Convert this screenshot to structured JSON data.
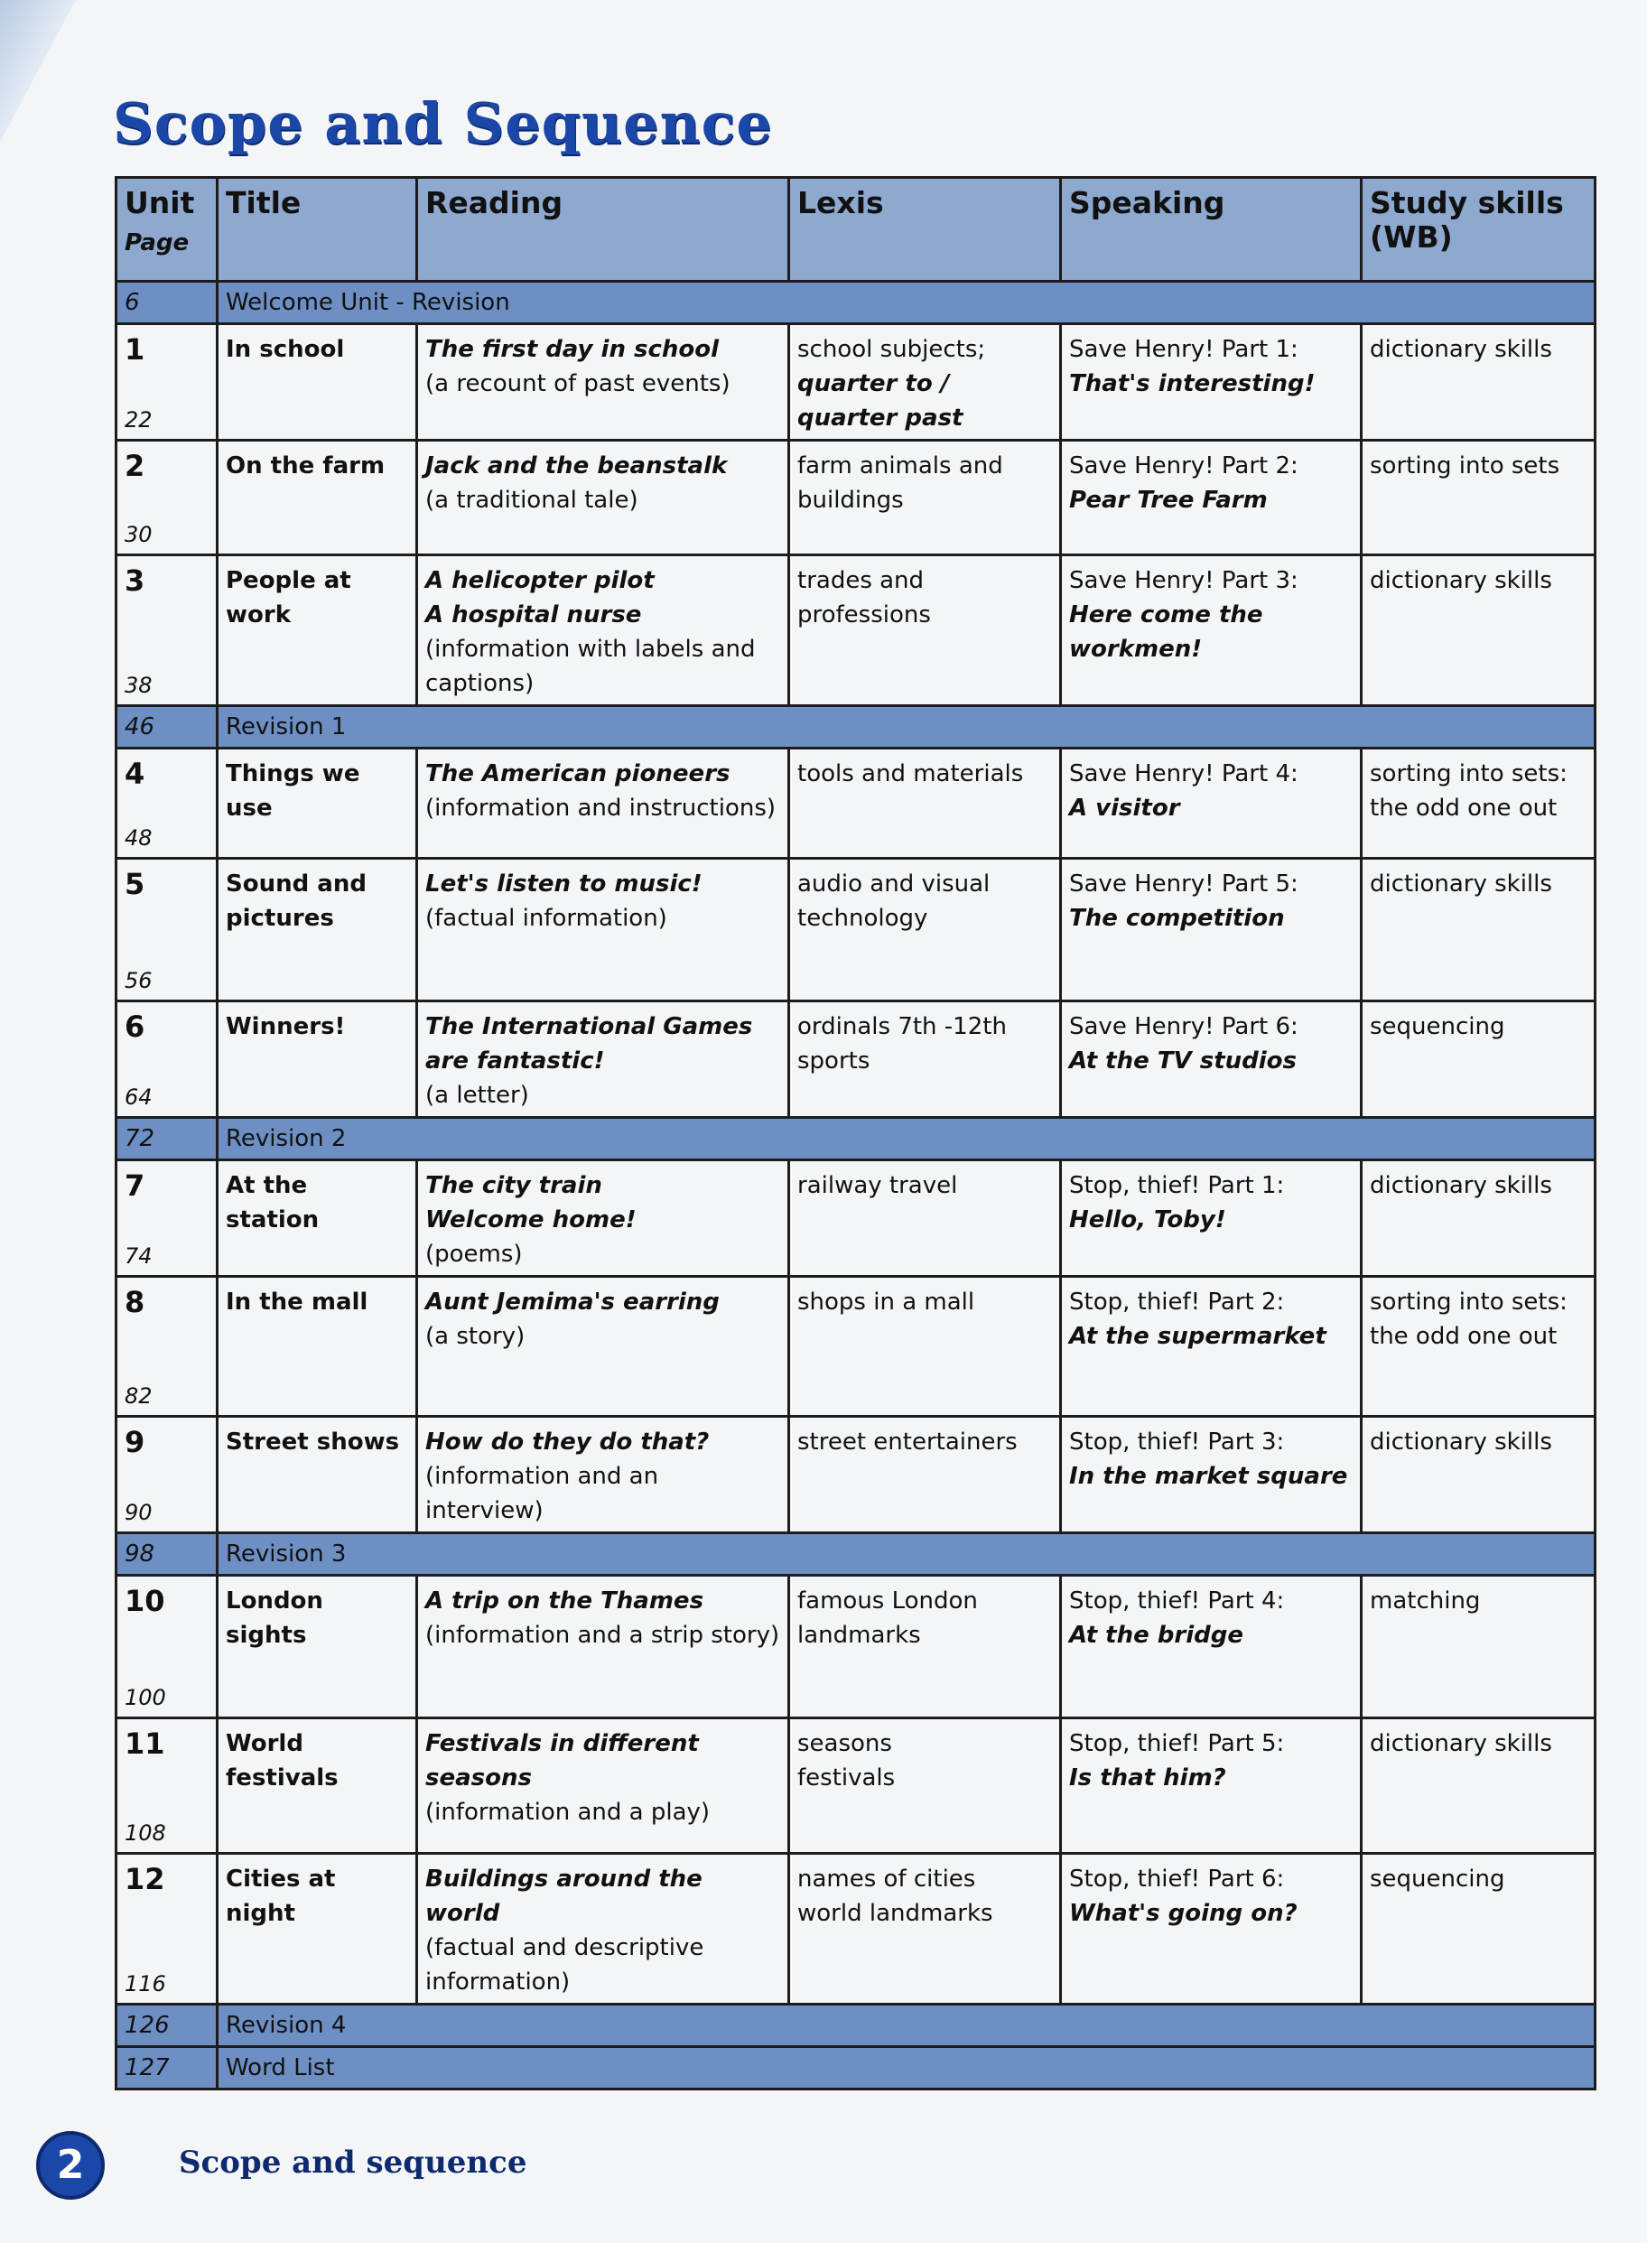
{
  "title": "Scope and Sequence",
  "headers": {
    "unit": "Unit",
    "page": "Page",
    "title": "Title",
    "reading": "Reading",
    "lexis": "Lexis",
    "speaking": "Speaking",
    "study": "Study skills (WB)"
  },
  "rows": [
    {
      "band": true,
      "page": "6",
      "label": "Welcome Unit - Revision"
    },
    {
      "unit": "1",
      "page": "22",
      "title": [
        "In school"
      ],
      "reading": [
        {
          "t": "The first day in school",
          "i": true
        },
        {
          "t": "(a recount of past events)",
          "i": false
        }
      ],
      "lexis": [
        {
          "t": "school subjects;",
          "i": false
        },
        {
          "t": "quarter to / quarter past",
          "i": true
        }
      ],
      "speaking": [
        "Save Henry! Part 1:",
        "That's interesting!"
      ],
      "study": "dictionary skills",
      "h": 124
    },
    {
      "unit": "2",
      "page": "30",
      "title": [
        "On the farm"
      ],
      "reading": [
        {
          "t": "Jack and the beanstalk",
          "i": true
        },
        {
          "t": "(a traditional tale)",
          "i": false
        }
      ],
      "lexis": [
        {
          "t": "farm animals and buildings",
          "i": false
        }
      ],
      "speaking": [
        "Save Henry! Part 2:",
        "Pear Tree Farm"
      ],
      "study": "sorting into sets",
      "h": 127
    },
    {
      "unit": "3",
      "page": "38",
      "title": [
        "People at work"
      ],
      "reading": [
        {
          "t": "A helicopter pilot",
          "i": true
        },
        {
          "t": "A hospital nurse",
          "i": true
        },
        {
          "t": "(information with labels and captions)",
          "i": false
        }
      ],
      "lexis": [
        {
          "t": "trades and professions",
          "i": false
        }
      ],
      "speaking": [
        "Save Henry! Part 3:",
        "Here come the workmen!"
      ],
      "study": "dictionary skills",
      "h": 124
    },
    {
      "band": true,
      "page": "46",
      "label": "Revision 1"
    },
    {
      "unit": "4",
      "page": "48",
      "title": [
        "Things we use"
      ],
      "reading": [
        {
          "t": "The American pioneers",
          "i": true
        },
        {
          "t": "(information and instructions)",
          "i": false
        }
      ],
      "lexis": [
        {
          "t": "tools and materials",
          "i": false
        }
      ],
      "speaking": [
        "Save Henry! Part 4:",
        "A visitor"
      ],
      "study": "sorting into sets: the odd one out",
      "h": 122
    },
    {
      "unit": "5",
      "page": "56",
      "title": [
        "Sound and pictures"
      ],
      "reading": [
        {
          "t": "Let's listen to music!",
          "i": true
        },
        {
          "t": "(factual information)",
          "i": false
        }
      ],
      "lexis": [
        {
          "t": "audio and visual technology",
          "i": false
        }
      ],
      "speaking": [
        "Save Henry! Part 5:",
        "The competition"
      ],
      "study": "dictionary skills",
      "h": 158
    },
    {
      "unit": "6",
      "page": "64",
      "title": [
        "Winners!"
      ],
      "reading": [
        {
          "t": "The International Games are fantastic!",
          "i": true
        },
        {
          "t": "(a letter)",
          "i": false
        }
      ],
      "lexis": [
        {
          "t": "ordinals 7th -12th",
          "i": false
        },
        {
          "t": "sports",
          "i": false
        }
      ],
      "speaking": [
        "Save Henry! Part 6:",
        "At the TV studios"
      ],
      "study": "sequencing",
      "h": 119
    },
    {
      "band": true,
      "page": "72",
      "label": "Revision 2"
    },
    {
      "unit": "7",
      "page": "74",
      "title": [
        "At the station"
      ],
      "reading": [
        {
          "t": "The city train",
          "i": true
        },
        {
          "t": "Welcome home!",
          "i": true
        },
        {
          "t": "(poems)",
          "i": false
        }
      ],
      "lexis": [
        {
          "t": "railway travel",
          "i": false
        }
      ],
      "speaking": [
        "Stop, thief! Part 1:",
        "Hello, Toby!"
      ],
      "study": "dictionary skills",
      "h": 119
    },
    {
      "unit": "8",
      "page": "82",
      "title": [
        "In the mall"
      ],
      "reading": [
        {
          "t": "Aunt Jemima's earring",
          "i": true
        },
        {
          "t": "(a story)",
          "i": false
        }
      ],
      "lexis": [
        {
          "t": "shops in a mall",
          "i": false
        }
      ],
      "speaking": [
        "Stop, thief! Part 2:",
        "At the supermarket"
      ],
      "study": "sorting into sets: the odd one out",
      "h": 155
    },
    {
      "unit": "9",
      "page": "90",
      "title": [
        "Street shows"
      ],
      "reading": [
        {
          "t": "How do they do that?",
          "i": true
        },
        {
          "t": "(information and an interview)",
          "i": false
        }
      ],
      "lexis": [
        {
          "t": "street entertainers",
          "i": false
        }
      ],
      "speaking": [
        "Stop, thief! Part 3:",
        "In the market square"
      ],
      "study": "dictionary skills",
      "h": 117
    },
    {
      "band": true,
      "page": "98",
      "label": "Revision 3"
    },
    {
      "unit": "10",
      "page": "100",
      "title": [
        "London sights"
      ],
      "reading": [
        {
          "t": "A trip on the Thames",
          "i": true
        },
        {
          "t": "(information and a strip story)",
          "i": false
        }
      ],
      "lexis": [
        {
          "t": "famous London landmarks",
          "i": false
        }
      ],
      "speaking": [
        "Stop, thief! Part 4:",
        "At the bridge"
      ],
      "study": "matching",
      "h": 158
    },
    {
      "unit": "11",
      "page": "108",
      "title": [
        "World festivals"
      ],
      "reading": [
        {
          "t": "Festivals in different seasons",
          "i": true
        },
        {
          "t": "(information and a play)",
          "i": false
        }
      ],
      "lexis": [
        {
          "t": "seasons",
          "i": false
        },
        {
          "t": "festivals",
          "i": false
        }
      ],
      "speaking": [
        "Stop, thief! Part 5:",
        "Is that him?"
      ],
      "study": "dictionary skills",
      "h": 150
    },
    {
      "unit": "12",
      "page": "116",
      "title": [
        "Cities at night"
      ],
      "reading": [
        {
          "t": "Buildings around the world",
          "i": true
        },
        {
          "t": "(factual and descriptive information)",
          "i": false
        }
      ],
      "lexis": [
        {
          "t": "names of cities",
          "i": false
        },
        {
          "t": "world landmarks",
          "i": false
        }
      ],
      "speaking": [
        "Stop, thief! Part 6:",
        "What's going on?"
      ],
      "study": "sequencing",
      "h": 150
    },
    {
      "band": true,
      "page": "126",
      "label": "Revision 4"
    },
    {
      "band": true,
      "page": "127",
      "label": "Word List"
    }
  ],
  "footer": {
    "page_number": "2",
    "text": "Scope and sequence"
  }
}
